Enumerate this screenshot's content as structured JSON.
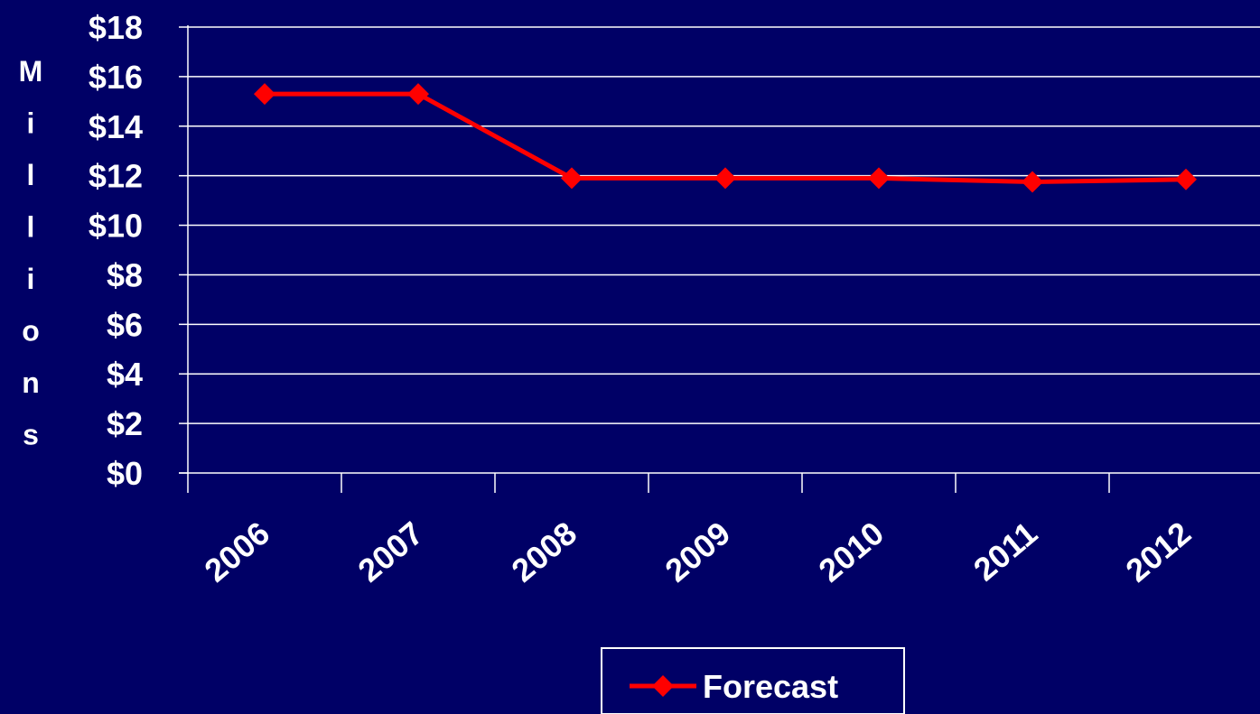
{
  "chart_data": {
    "type": "line",
    "title": "",
    "xlabel": "",
    "ylabel": "Millions",
    "categories": [
      "2006",
      "2007",
      "2008",
      "2009",
      "2010",
      "2011",
      "2012"
    ],
    "series": [
      {
        "name": "Forecast",
        "values": [
          15.3,
          15.3,
          11.9,
          11.9,
          11.9,
          11.75,
          11.85
        ],
        "color": "#ff0000",
        "marker": "diamond"
      }
    ],
    "yticks": [
      "$0",
      "$2",
      "$4",
      "$6",
      "$8",
      "$10",
      "$12",
      "$14",
      "$16",
      "$18"
    ],
    "ylim": [
      0,
      18
    ],
    "grid": true,
    "legend_position": "bottom",
    "background_color": "#000066",
    "text_color": "#ffffff"
  }
}
